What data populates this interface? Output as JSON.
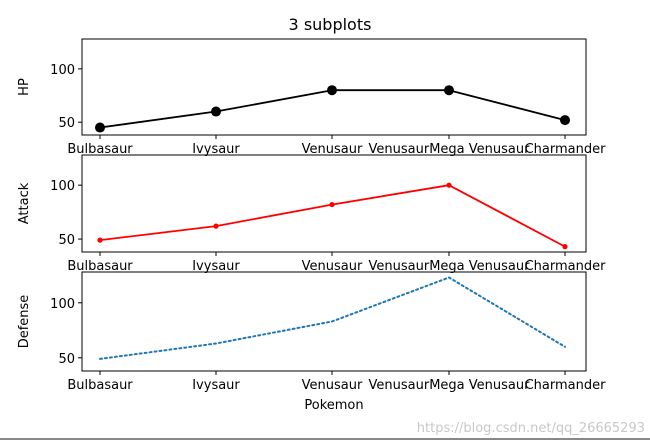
{
  "figure": {
    "title": "3 subplots",
    "watermark": "https://blog.csdn.net/qq_26665293"
  },
  "chart_data": [
    {
      "type": "line",
      "categories": [
        "Bulbasaur",
        "Ivysaur",
        "Venusaur",
        "VenusaurMega Venusaur",
        "Charmander"
      ],
      "series": [
        {
          "values": [
            45,
            60,
            80,
            80,
            52
          ]
        }
      ],
      "title": "3 subplots",
      "xlabel": "",
      "ylabel": "HP",
      "ylim": [
        38,
        128
      ],
      "yticks": [
        50,
        100
      ],
      "style": {
        "color": "#000000",
        "linestyle": "solid",
        "marker": "large-circle"
      }
    },
    {
      "type": "line",
      "categories": [
        "Bulbasaur",
        "Ivysaur",
        "Venusaur",
        "VenusaurMega Venusaur",
        "Charmander"
      ],
      "series": [
        {
          "values": [
            49,
            62,
            82,
            100,
            43
          ]
        }
      ],
      "xlabel": "",
      "ylabel": "Attack",
      "ylim": [
        38,
        128
      ],
      "yticks": [
        50,
        100
      ],
      "style": {
        "color": "#ff0000",
        "linestyle": "solid",
        "marker": "small-dot"
      }
    },
    {
      "type": "line",
      "categories": [
        "Bulbasaur",
        "Ivysaur",
        "Venusaur",
        "VenusaurMega Venusaur",
        "Charmander"
      ],
      "series": [
        {
          "values": [
            49,
            63,
            83,
            123,
            60
          ]
        }
      ],
      "xlabel": "Pokemon",
      "ylabel": "Defense",
      "ylim": [
        38,
        128
      ],
      "yticks": [
        50,
        100
      ],
      "style": {
        "color": "#1f77b4",
        "linestyle": "dotted",
        "marker": "none"
      }
    }
  ]
}
